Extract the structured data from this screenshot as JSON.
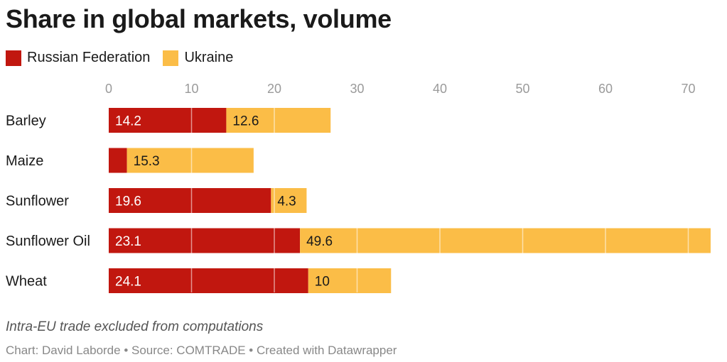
{
  "title": "Share in global markets, volume",
  "legend": {
    "russia": "Russian Federation",
    "ukraine": "Ukraine"
  },
  "colors": {
    "russia": "#c1170f",
    "ukraine": "#fbbd47",
    "tick": "#9a9a9a",
    "label": "#1a1a1a"
  },
  "footer": {
    "note": "Intra-EU trade excluded from computations",
    "credit": "Chart: David Laborde • Source: COMTRADE • Created with Datawrapper"
  },
  "chart_data": {
    "type": "bar",
    "orientation": "horizontal",
    "stacked": true,
    "categories": [
      "Barley",
      "Maize",
      "Sunflower",
      "Sunflower Oil",
      "Wheat"
    ],
    "series": [
      {
        "name": "Russian Federation",
        "values": [
          14.2,
          2.2,
          19.6,
          23.1,
          24.1
        ],
        "labels": [
          "14.2",
          "",
          "19.6",
          "23.1",
          "24.1"
        ]
      },
      {
        "name": "Ukraine",
        "values": [
          12.6,
          15.3,
          4.3,
          49.6,
          10
        ],
        "labels": [
          "12.6",
          "15.3",
          "4.3",
          "49.6",
          "10"
        ]
      }
    ],
    "xticks": [
      0,
      10,
      20,
      30,
      40,
      50,
      60,
      70
    ],
    "xlim": [
      0,
      73
    ],
    "xaxis_position": "top",
    "legend_position": "top-left",
    "vertical_grid": true
  }
}
